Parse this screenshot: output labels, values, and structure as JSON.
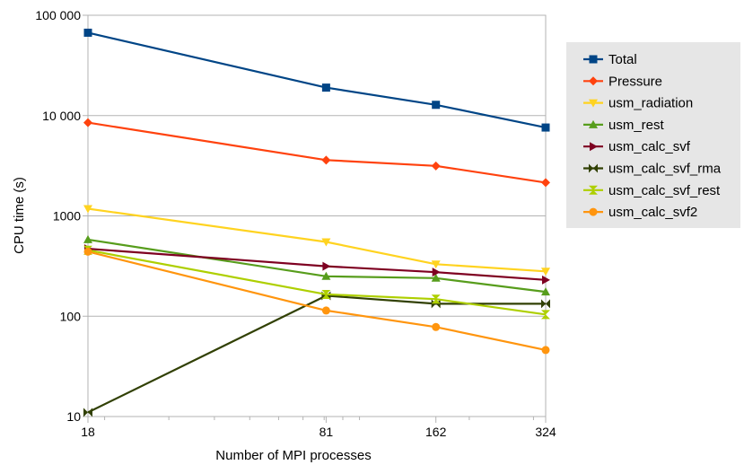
{
  "chart_data": {
    "type": "line",
    "title": "",
    "xlabel": "Number of MPI processes",
    "ylabel": "CPU time (s)",
    "x_scale": "log",
    "y_scale": "log",
    "x": [
      18,
      81,
      162,
      324
    ],
    "x_tick_labels": [
      "18",
      "81",
      "162",
      "324"
    ],
    "ylim": [
      10,
      100000
    ],
    "y_tick_values": [
      10,
      100,
      1000,
      10000,
      100000
    ],
    "y_tick_labels": [
      "10",
      "100",
      "1000",
      "10 000",
      "100 000"
    ],
    "grid": "horizontal major gridlines",
    "legend_position": "right",
    "series": [
      {
        "name": "Total",
        "color": "#004586",
        "marker": "square",
        "values": [
          67000,
          19000,
          12800,
          7600
        ]
      },
      {
        "name": "Pressure",
        "color": "#ff420e",
        "marker": "diamond",
        "values": [
          8500,
          3600,
          3150,
          2150
        ]
      },
      {
        "name": "usm_radiation",
        "color": "#ffd320",
        "marker": "triangle-down",
        "values": [
          1180,
          550,
          330,
          280
        ]
      },
      {
        "name": "usm_rest",
        "color": "#579d1c",
        "marker": "triangle-up",
        "values": [
          580,
          250,
          240,
          175
        ]
      },
      {
        "name": "usm_calc_svf",
        "color": "#7e0021",
        "marker": "triangle-right",
        "values": [
          470,
          315,
          275,
          230
        ]
      },
      {
        "name": "usm_calc_svf_rma",
        "color": "#314004",
        "marker": "bowtie",
        "values": [
          11,
          160,
          133,
          133
        ]
      },
      {
        "name": "usm_calc_svf_rest",
        "color": "#aecf00",
        "marker": "hourglass",
        "values": [
          455,
          165,
          148,
          104
        ]
      },
      {
        "name": "usm_calc_svf2",
        "color": "#ff950e",
        "marker": "circle",
        "values": [
          440,
          114,
          78,
          46
        ]
      }
    ]
  }
}
